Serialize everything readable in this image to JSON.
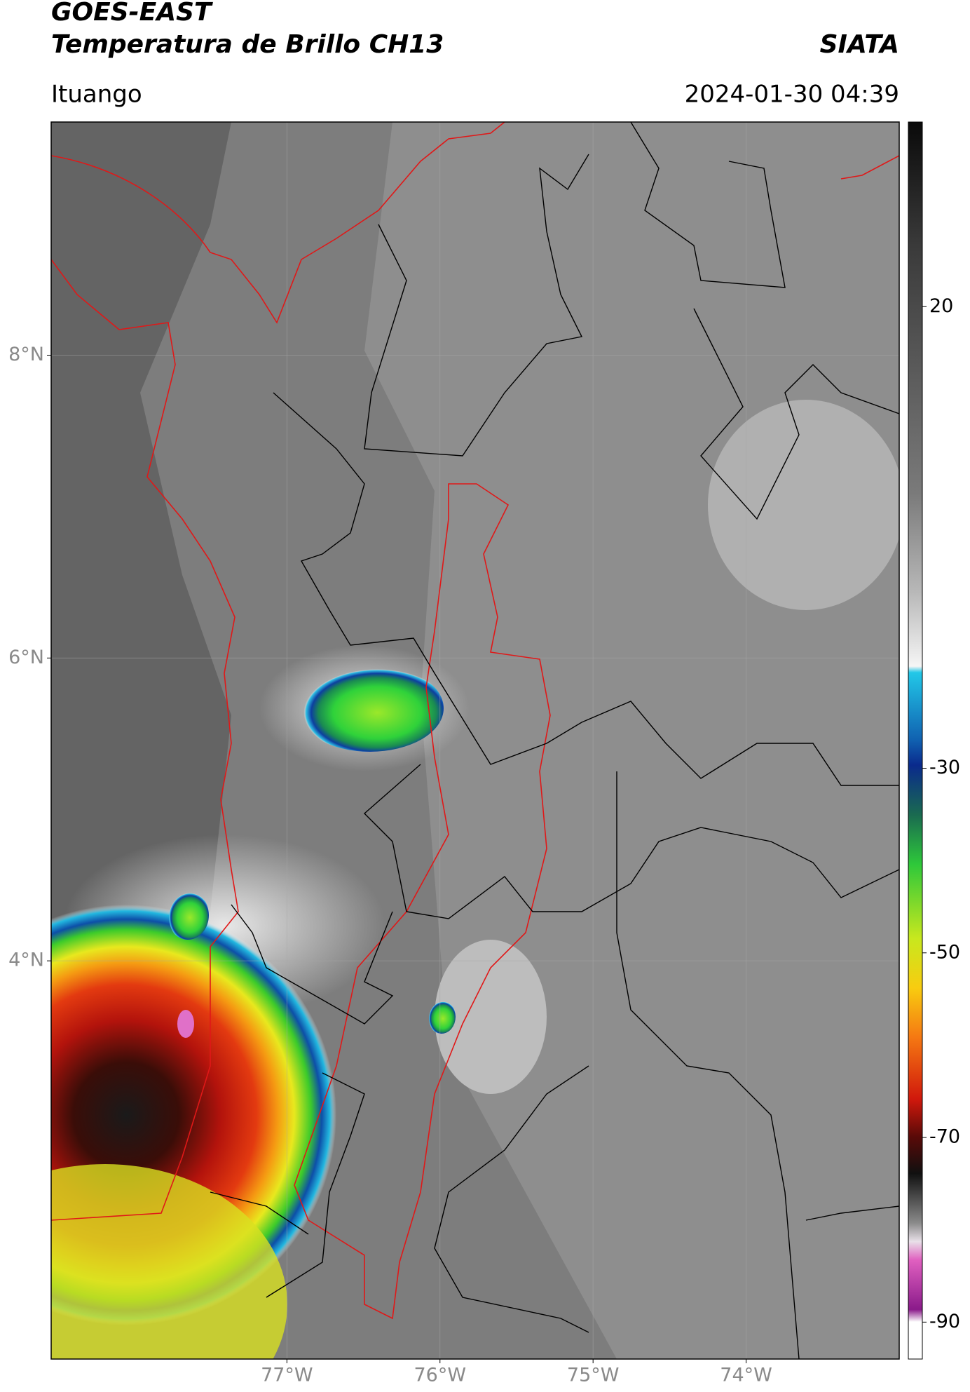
{
  "header": {
    "title": "GOES-EAST",
    "subtitle": "Temperatura de Brillo CH13",
    "source": "SIATA",
    "region": "Ituango",
    "datetime": "2024-01-30 04:39"
  },
  "map": {
    "xlim": [
      -78.54,
      -73.0
    ],
    "ylim": [
      1.37,
      9.54
    ],
    "xticks": [
      {
        "value": -77,
        "label": "77°W"
      },
      {
        "value": -76,
        "label": "76°W"
      },
      {
        "value": -75,
        "label": "75°W"
      },
      {
        "value": -74,
        "label": "74°W"
      }
    ],
    "yticks": [
      {
        "value": 8,
        "label": "8°N"
      },
      {
        "value": 6,
        "label": "6°N"
      },
      {
        "value": 4,
        "label": "4°N"
      }
    ],
    "grid": true
  },
  "colorbar": {
    "clim": [
      -94,
      40
    ],
    "ticks": [
      20,
      -30,
      -50,
      -70,
      -90
    ]
  }
}
